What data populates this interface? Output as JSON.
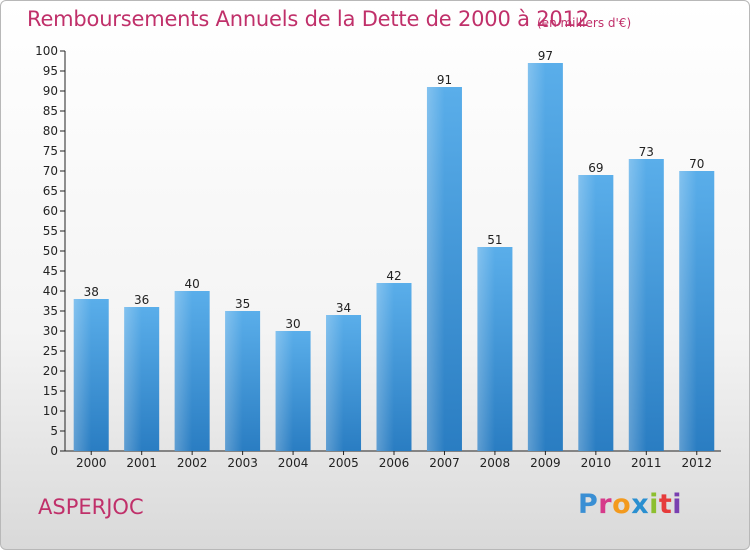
{
  "header": {
    "title": "Remboursements Annuels de la Dette de 2000 à 2012",
    "subtitle": "(en milliers d'€)"
  },
  "footer": {
    "commune": "ASPERJOC",
    "logo_letters": [
      "P",
      "r",
      "o",
      "x",
      "i",
      "t",
      "i"
    ],
    "logo_colors": [
      "#3a8fd4",
      "#d63a8a",
      "#f39a1e",
      "#2a8fd0",
      "#8dbf2f",
      "#e63b3b",
      "#7a3fb0"
    ]
  },
  "chart_data": {
    "type": "bar",
    "categories": [
      "2000",
      "2001",
      "2002",
      "2003",
      "2004",
      "2005",
      "2006",
      "2007",
      "2008",
      "2009",
      "2010",
      "2011",
      "2012"
    ],
    "values": [
      38,
      36,
      40,
      35,
      30,
      34,
      42,
      91,
      51,
      97,
      69,
      73,
      70
    ],
    "title": "Remboursements Annuels de la Dette de 2000 à 2012",
    "xlabel": "",
    "ylabel": "",
    "ylim": [
      0,
      100
    ],
    "ytick_step": 5,
    "grid": false,
    "data_labels": true,
    "bar_color": "#3f98dc"
  }
}
